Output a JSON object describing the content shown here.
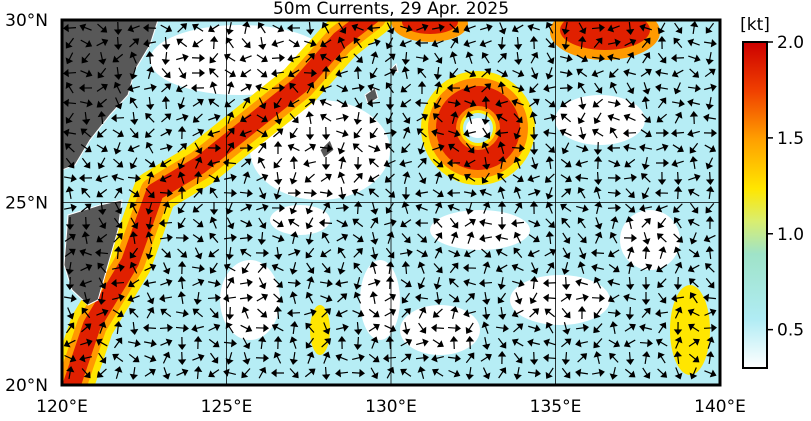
{
  "title": "50m Currents, 29 Apr. 2025",
  "map": {
    "lon_range": [
      120,
      140
    ],
    "lat_range": [
      20,
      30
    ],
    "lon_ticks": [
      {
        "value": 120,
        "label": "120°E"
      },
      {
        "value": 125,
        "label": "125°E"
      },
      {
        "value": 130,
        "label": "130°E"
      },
      {
        "value": 135,
        "label": "135°E"
      },
      {
        "value": 140,
        "label": "140°E"
      }
    ],
    "lat_ticks": [
      {
        "value": 20,
        "label": "20°N"
      },
      {
        "value": 25,
        "label": "25°N"
      },
      {
        "value": 30,
        "label": "30°N"
      }
    ]
  },
  "colorbar": {
    "label": "[kt]",
    "range": [
      0.3,
      2.0
    ],
    "ticks": [
      {
        "value": 0.5,
        "label": "0.5"
      },
      {
        "value": 1.0,
        "label": "1.0"
      },
      {
        "value": 1.5,
        "label": "1.5"
      },
      {
        "value": 2.0,
        "label": "2.0"
      }
    ]
  }
}
